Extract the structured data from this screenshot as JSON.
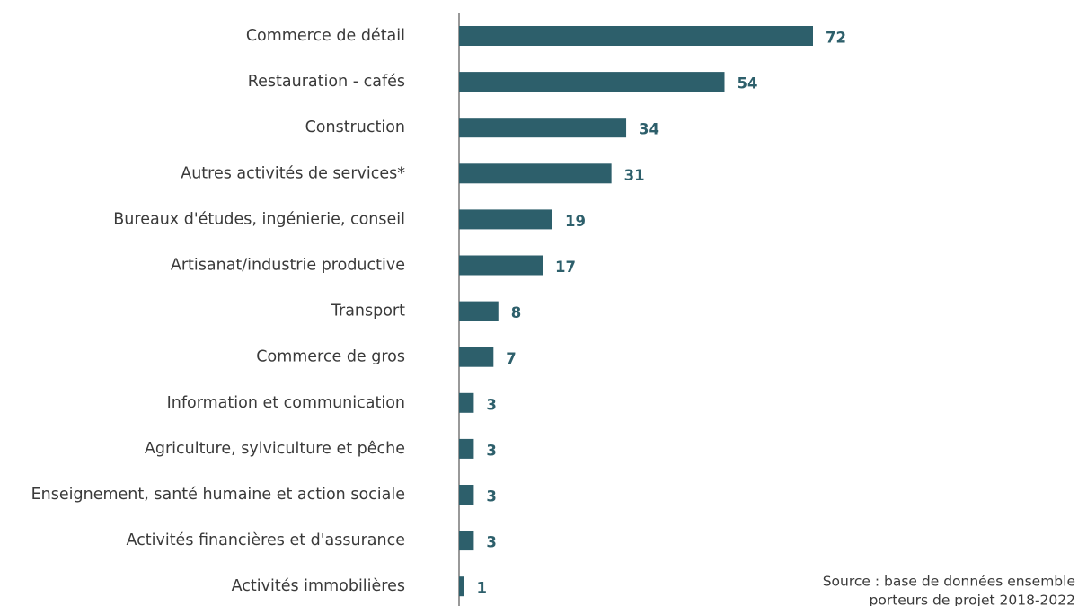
{
  "chart_data": {
    "type": "bar",
    "orientation": "horizontal",
    "categories": [
      "Commerce de détail",
      "Restauration - cafés",
      "Construction",
      "Autres activités de services*",
      "Bureaux d'études, ingénierie, conseil",
      "Artisanat/industrie productive",
      "Transport",
      "Commerce de gros",
      "Information et communication",
      "Agriculture, sylviculture et pêche",
      "Enseignement, santé humaine et action sociale",
      "Activités financières et d'assurance",
      "Activités immobilières"
    ],
    "values": [
      72,
      54,
      34,
      31,
      19,
      17,
      8,
      7,
      3,
      3,
      3,
      3,
      1
    ],
    "color": "#2d5f6b",
    "source": [
      "Source : base de données ensemble",
      "porteurs de projet 2018-2022"
    ]
  }
}
